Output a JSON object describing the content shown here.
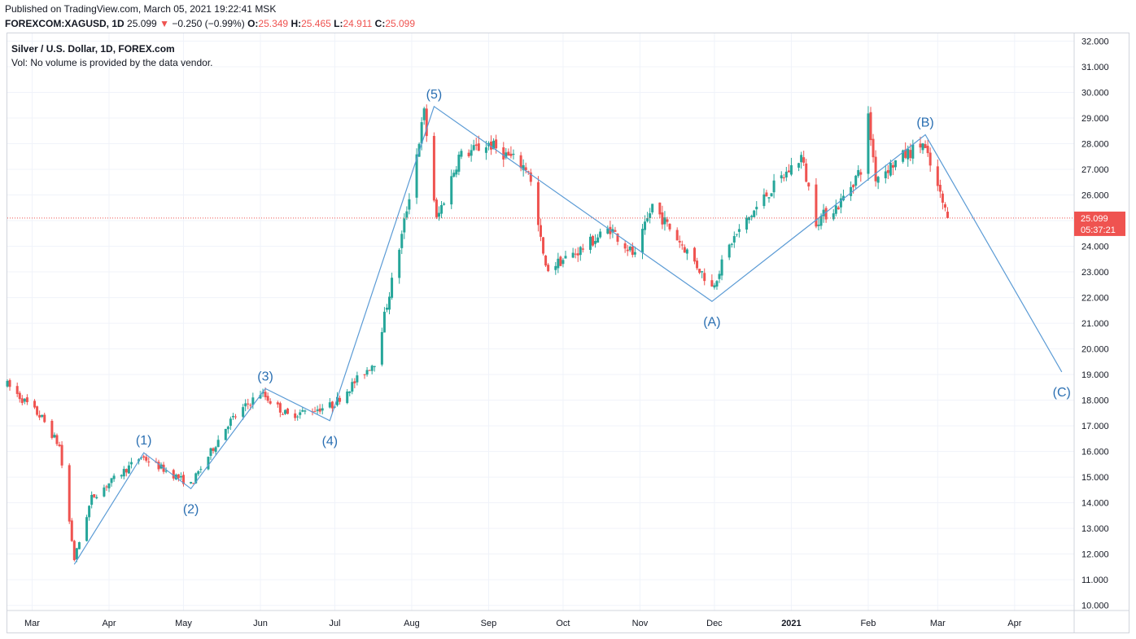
{
  "header": {
    "published": "Published on TradingView.com, March 05, 2021 19:22:41 MSK",
    "symbol": "FOREXCOM:XAGUSD, 1D",
    "last": "25.099",
    "arrow": "▼",
    "change": "−0.250 (−0.99%)",
    "o_label": "O:",
    "o": "25.349",
    "h_label": "H:",
    "h": "25.465",
    "l_label": "L:",
    "l": "24.911",
    "c_label": "C:",
    "c": "25.099"
  },
  "legend": {
    "title": "Silver / U.S. Dollar, 1D, FOREX.com",
    "volume_note": "Vol: No volume is provided by the data vendor."
  },
  "price_badge": {
    "price": "25.099",
    "countdown": "05:37:21"
  },
  "colors": {
    "up": "#26a69a",
    "down": "#ef5350",
    "wave": "#2a6fb2",
    "wave_line": "#5b9bd5",
    "grid": "#f0f3fa",
    "last_price": "#ef5350"
  },
  "chart_data": {
    "type": "candlestick",
    "title": "Silver / U.S. Dollar, 1D, FOREX.com",
    "ylim": [
      9.8,
      32.3
    ],
    "x_range": [
      "2020-02-20",
      "2021-04-25"
    ],
    "y_ticks": [
      "10.000",
      "11.000",
      "12.000",
      "13.000",
      "14.000",
      "15.000",
      "16.000",
      "17.000",
      "18.000",
      "19.000",
      "20.000",
      "21.000",
      "22.000",
      "23.000",
      "24.000",
      "25.000",
      "26.000",
      "27.000",
      "28.000",
      "29.000",
      "30.000",
      "31.000",
      "32.000"
    ],
    "x_ticks": [
      {
        "label": "Mar",
        "date": "2020-03-01",
        "bold": false
      },
      {
        "label": "Apr",
        "date": "2020-04-01",
        "bold": false
      },
      {
        "label": "May",
        "date": "2020-05-01",
        "bold": false
      },
      {
        "label": "Jun",
        "date": "2020-06-01",
        "bold": false
      },
      {
        "label": "Jul",
        "date": "2020-07-01",
        "bold": false
      },
      {
        "label": "Aug",
        "date": "2020-08-01",
        "bold": false
      },
      {
        "label": "Sep",
        "date": "2020-09-01",
        "bold": false
      },
      {
        "label": "Oct",
        "date": "2020-10-01",
        "bold": false
      },
      {
        "label": "Nov",
        "date": "2020-11-01",
        "bold": false
      },
      {
        "label": "Dec",
        "date": "2020-12-01",
        "bold": false
      },
      {
        "label": "2021",
        "date": "2021-01-01",
        "bold": true
      },
      {
        "label": "Feb",
        "date": "2021-02-01",
        "bold": false
      },
      {
        "label": "Mar",
        "date": "2021-03-01",
        "bold": false
      },
      {
        "label": "Apr",
        "date": "2021-04-01",
        "bold": false
      }
    ],
    "last_price": 25.099,
    "price_anchors": [
      [
        "2020-02-20",
        18.6
      ],
      [
        "2020-03-05",
        17.3
      ],
      [
        "2020-03-12",
        16.2
      ],
      [
        "2020-03-18",
        11.8
      ],
      [
        "2020-03-25",
        14.2
      ],
      [
        "2020-04-14",
        15.8
      ],
      [
        "2020-05-04",
        14.7
      ],
      [
        "2020-05-19",
        17.1
      ],
      [
        "2020-06-01",
        18.3
      ],
      [
        "2020-06-12",
        17.4
      ],
      [
        "2020-06-30",
        17.8
      ],
      [
        "2020-07-17",
        19.5
      ],
      [
        "2020-07-28",
        24.4
      ],
      [
        "2020-08-06",
        29.2
      ],
      [
        "2020-08-11",
        25.0
      ],
      [
        "2020-08-20",
        27.5
      ],
      [
        "2020-09-01",
        28.0
      ],
      [
        "2020-09-17",
        27.0
      ],
      [
        "2020-09-24",
        23.1
      ],
      [
        "2020-10-07",
        23.8
      ],
      [
        "2020-10-20",
        24.7
      ],
      [
        "2020-10-30",
        23.6
      ],
      [
        "2020-11-06",
        25.6
      ],
      [
        "2020-11-20",
        23.8
      ],
      [
        "2020-11-30",
        22.4
      ],
      [
        "2020-12-08",
        24.2
      ],
      [
        "2020-12-21",
        25.9
      ],
      [
        "2021-01-05",
        27.5
      ],
      [
        "2021-01-11",
        25.0
      ],
      [
        "2021-01-20",
        25.6
      ],
      [
        "2021-01-29",
        27.0
      ],
      [
        "2021-02-01",
        29.0
      ],
      [
        "2021-02-04",
        26.7
      ],
      [
        "2021-02-15",
        27.5
      ],
      [
        "2021-02-23",
        28.0
      ],
      [
        "2021-03-05",
        25.1
      ]
    ],
    "elliott_waves": {
      "points": [
        {
          "date": "2020-03-18",
          "price": 11.6,
          "label": ""
        },
        {
          "date": "2020-04-15",
          "price": 15.95,
          "label": "(1)"
        },
        {
          "date": "2020-05-04",
          "price": 14.55,
          "label": "(2)"
        },
        {
          "date": "2020-06-03",
          "price": 18.45,
          "label": "(3)"
        },
        {
          "date": "2020-06-29",
          "price": 17.2,
          "label": "(4)"
        },
        {
          "date": "2020-08-10",
          "price": 29.45,
          "label": "(5)"
        },
        {
          "date": "2020-11-30",
          "price": 21.85,
          "label": "(A)"
        },
        {
          "date": "2021-02-24",
          "price": 28.35,
          "label": "(B)"
        },
        {
          "date": "2021-04-20",
          "price": 19.1,
          "label": "(C)"
        }
      ]
    }
  }
}
